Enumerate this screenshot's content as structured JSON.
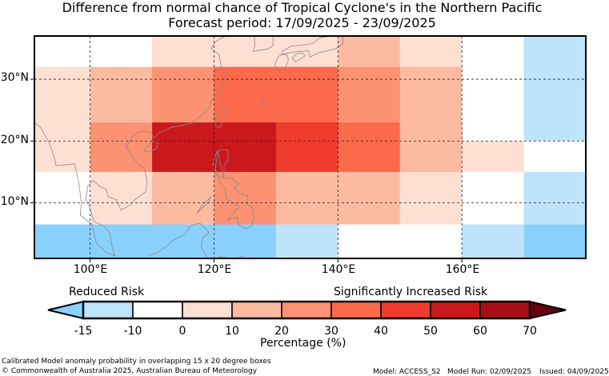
{
  "title_line1": "Difference from normal chance of Tropical Cyclone's in the Northern Pacific",
  "title_line2": "Forecast period: 17/09/2025 - 23/09/2025",
  "lat_labels": [
    "30°N",
    "20°N",
    "10°N"
  ],
  "lon_labels": [
    "100°E",
    "120°E",
    "140°E",
    "160°E"
  ],
  "legend": {
    "low_label": "Reduced Risk",
    "high_label": "Significantly Increased Risk",
    "unit_label": "Percentage (%)",
    "ticks": [
      "-15",
      "-10",
      "0",
      "10",
      "20",
      "30",
      "40",
      "50",
      "60",
      "70"
    ],
    "colors": {
      "lt-15": "#8ad0fc",
      "-15_-10": "#bee4fc",
      "-10_0": "#ffffff",
      "0_10": "#fee0d2",
      "10_20": "#fcbba1",
      "20_30": "#fc9272",
      "30_40": "#fb6a4a",
      "40_50": "#ef3b2c",
      "50_60": "#cb181d",
      "60_70": "#a50f15",
      "gt70": "#67000d"
    }
  },
  "footer": {
    "left1": "Calibrated Model anomaly probability in overlapping 15 x 20 degree boxes",
    "left2": "© Commonwealth of Australia 2025, Australian Bureau of Meteorology",
    "model": "Model: ACCESS_S2",
    "run": "Model Run: 02/09/2025",
    "issued": "Issued: 04/09/2025"
  },
  "map_data": {
    "lon_range": [
      91,
      180
    ],
    "lat_range": [
      1,
      37
    ],
    "grid_lons": [
      100,
      120,
      140,
      160
    ],
    "grid_lats": [
      10,
      20,
      30
    ],
    "cells": [
      {
        "lon0": 91,
        "lon1": 110,
        "lat0": 32,
        "lat1": 37,
        "c": "-10_0"
      },
      {
        "lon0": 110,
        "lon1": 130,
        "lat0": 32,
        "lat1": 37,
        "c": "0_10"
      },
      {
        "lon0": 130,
        "lon1": 140,
        "lat0": 32,
        "lat1": 37,
        "c": "0_10"
      },
      {
        "lon0": 140,
        "lon1": 150,
        "lat0": 32,
        "lat1": 37,
        "c": "10_20"
      },
      {
        "lon0": 150,
        "lon1": 160,
        "lat0": 32,
        "lat1": 37,
        "c": "0_10"
      },
      {
        "lon0": 160,
        "lon1": 170,
        "lat0": 32,
        "lat1": 37,
        "c": "-10_0"
      },
      {
        "lon0": 170,
        "lon1": 180,
        "lat0": 32,
        "lat1": 37,
        "c": "-15_-10"
      },
      {
        "lon0": 91,
        "lon1": 100,
        "lat0": 23,
        "lat1": 32,
        "c": "0_10"
      },
      {
        "lon0": 100,
        "lon1": 110,
        "lat0": 23,
        "lat1": 32,
        "c": "10_20"
      },
      {
        "lon0": 110,
        "lon1": 120,
        "lat0": 23,
        "lat1": 32,
        "c": "20_30"
      },
      {
        "lon0": 120,
        "lon1": 140,
        "lat0": 23,
        "lat1": 32,
        "c": "30_40"
      },
      {
        "lon0": 140,
        "lon1": 150,
        "lat0": 23,
        "lat1": 32,
        "c": "20_30"
      },
      {
        "lon0": 150,
        "lon1": 160,
        "lat0": 23,
        "lat1": 32,
        "c": "10_20"
      },
      {
        "lon0": 160,
        "lon1": 170,
        "lat0": 20,
        "lat1": 32,
        "c": "-10_0"
      },
      {
        "lon0": 170,
        "lon1": 180,
        "lat0": 20,
        "lat1": 32,
        "c": "-15_-10"
      },
      {
        "lon0": 91,
        "lon1": 100,
        "lat0": 15,
        "lat1": 23,
        "c": "0_10"
      },
      {
        "lon0": 100,
        "lon1": 110,
        "lat0": 15,
        "lat1": 23,
        "c": "20_30"
      },
      {
        "lon0": 110,
        "lon1": 130,
        "lat0": 15,
        "lat1": 23,
        "c": "50_60"
      },
      {
        "lon0": 130,
        "lon1": 140,
        "lat0": 15,
        "lat1": 23,
        "c": "40_50"
      },
      {
        "lon0": 140,
        "lon1": 150,
        "lat0": 15,
        "lat1": 23,
        "c": "30_40"
      },
      {
        "lon0": 150,
        "lon1": 160,
        "lat0": 15,
        "lat1": 23,
        "c": "10_20"
      },
      {
        "lon0": 160,
        "lon1": 170,
        "lat0": 15,
        "lat1": 20,
        "c": "0_10"
      },
      {
        "lon0": 170,
        "lon1": 180,
        "lat0": 15,
        "lat1": 20,
        "c": "-10_0"
      },
      {
        "lon0": 91,
        "lon1": 100,
        "lat0": 6.5,
        "lat1": 15,
        "c": "-10_0"
      },
      {
        "lon0": 100,
        "lon1": 110,
        "lat0": 6.5,
        "lat1": 15,
        "c": "0_10"
      },
      {
        "lon0": 110,
        "lon1": 120,
        "lat0": 6.5,
        "lat1": 15,
        "c": "10_20"
      },
      {
        "lon0": 120,
        "lon1": 130,
        "lat0": 6.5,
        "lat1": 15,
        "c": "20_30"
      },
      {
        "lon0": 130,
        "lon1": 150,
        "lat0": 6.5,
        "lat1": 15,
        "c": "10_20"
      },
      {
        "lon0": 150,
        "lon1": 160,
        "lat0": 6.5,
        "lat1": 15,
        "c": "0_10"
      },
      {
        "lon0": 160,
        "lon1": 170,
        "lat0": 6.5,
        "lat1": 15,
        "c": "-10_0"
      },
      {
        "lon0": 170,
        "lon1": 180,
        "lat0": 6.5,
        "lat1": 15,
        "c": "-15_-10"
      },
      {
        "lon0": 91,
        "lon1": 130,
        "lat0": 1,
        "lat1": 6.5,
        "c": "lt-15"
      },
      {
        "lon0": 130,
        "lon1": 140,
        "lat0": 1,
        "lat1": 6.5,
        "c": "-15_-10"
      },
      {
        "lon0": 140,
        "lon1": 160,
        "lat0": 1,
        "lat1": 6.5,
        "c": "-10_0"
      },
      {
        "lon0": 160,
        "lon1": 170,
        "lat0": 1,
        "lat1": 6.5,
        "c": "-15_-10"
      },
      {
        "lon0": 170,
        "lon1": 180,
        "lat0": 1,
        "lat1": 6.5,
        "c": "lt-15"
      }
    ],
    "coastlines": [
      [
        [
          91,
          23
        ],
        [
          92,
          22.2
        ],
        [
          93.5,
          19.5
        ],
        [
          94.3,
          17
        ],
        [
          94.5,
          16
        ],
        [
          97.5,
          16.3
        ],
        [
          98.2,
          13
        ],
        [
          98.6,
          10
        ],
        [
          98.4,
          8
        ],
        [
          100.3,
          6.5
        ],
        [
          101,
          3.5
        ],
        [
          102.5,
          2
        ],
        [
          104,
          1.4
        ],
        [
          103.5,
          3
        ],
        [
          103.2,
          5
        ],
        [
          102.3,
          6.2
        ],
        [
          100.6,
          7
        ],
        [
          100,
          9
        ],
        [
          99.3,
          10.5
        ],
        [
          99.6,
          12.7
        ],
        [
          100.5,
          13.6
        ],
        [
          101.5,
          12.7
        ],
        [
          102.6,
          12.2
        ],
        [
          102.9,
          11
        ],
        [
          104.2,
          10.5
        ],
        [
          105,
          8.8
        ],
        [
          106.5,
          9.7
        ],
        [
          107.3,
          10.6
        ],
        [
          109,
          11.8
        ],
        [
          109.2,
          13.4
        ],
        [
          108.8,
          15.4
        ],
        [
          107.1,
          17
        ],
        [
          105.8,
          19
        ],
        [
          106.7,
          20.6
        ],
        [
          107.9,
          21.5
        ],
        [
          109.7,
          21.5
        ],
        [
          110.3,
          20.5
        ],
        [
          111.1,
          21.3
        ],
        [
          113,
          22.2
        ],
        [
          114.3,
          22.4
        ],
        [
          116.4,
          22.9
        ],
        [
          117.6,
          23.9
        ],
        [
          119.2,
          25.3
        ],
        [
          119.6,
          26.6
        ],
        [
          120.6,
          27.8
        ],
        [
          121.6,
          29.8
        ],
        [
          121.9,
          30.7
        ],
        [
          121.3,
          31.5
        ],
        [
          121.1,
          32.5
        ],
        [
          120.8,
          34
        ],
        [
          119.5,
          35
        ],
        [
          120.2,
          36
        ],
        [
          121.4,
          36.8
        ],
        [
          122.3,
          37
        ]
      ],
      [
        [
          120.2,
          22.5
        ],
        [
          120.1,
          23.5
        ],
        [
          120.7,
          24.5
        ],
        [
          121.5,
          25.2
        ],
        [
          122,
          25
        ],
        [
          121.6,
          24
        ],
        [
          121,
          22.1
        ],
        [
          120.2,
          22.5
        ]
      ],
      [
        [
          108.7,
          18.5
        ],
        [
          110,
          20
        ],
        [
          111,
          19.6
        ],
        [
          110.6,
          18.7
        ],
        [
          109.5,
          18.2
        ],
        [
          108.7,
          18.5
        ]
      ],
      [
        [
          120.6,
          18.5
        ],
        [
          120.3,
          16.2
        ],
        [
          120,
          14.8
        ],
        [
          120.6,
          14.3
        ],
        [
          121.8,
          13.9
        ],
        [
          122.6,
          14.1
        ],
        [
          124,
          13
        ],
        [
          123.2,
          12.4
        ],
        [
          124.2,
          11.5
        ],
        [
          125.5,
          11.1
        ],
        [
          125.3,
          9.8
        ],
        [
          126.2,
          9.2
        ],
        [
          126.5,
          7.4
        ],
        [
          126,
          6.2
        ],
        [
          125.2,
          5.8
        ],
        [
          124,
          6.4
        ],
        [
          123.7,
          7.7
        ],
        [
          122.2,
          7.2
        ],
        [
          123.3,
          8.6
        ],
        [
          124,
          9.4
        ],
        [
          123,
          10
        ],
        [
          122,
          10.6
        ],
        [
          121.8,
          12.4
        ],
        [
          121,
          13.1
        ],
        [
          120.6,
          14.6
        ],
        [
          119.8,
          16.2
        ],
        [
          120.4,
          18.2
        ],
        [
          121.3,
          18.6
        ],
        [
          122.2,
          18.5
        ],
        [
          122.3,
          17
        ],
        [
          121.6,
          15.9
        ],
        [
          121.6,
          15
        ],
        [
          121.5,
          14
        ],
        [
          120.6,
          18.5
        ]
      ],
      [
        [
          117.2,
          8.3
        ],
        [
          118,
          9.5
        ],
        [
          119.5,
          11
        ],
        [
          119.2,
          10.2
        ],
        [
          117.2,
          8.3
        ]
      ],
      [
        [
          109.5,
          1.5
        ],
        [
          110.5,
          1.8
        ],
        [
          112.3,
          2.9
        ],
        [
          113.3,
          3.9
        ],
        [
          115.4,
          5
        ],
        [
          116.2,
          6.3
        ],
        [
          117.7,
          6.7
        ],
        [
          119.2,
          5.2
        ],
        [
          118.2,
          4.4
        ],
        [
          117.9,
          3
        ],
        [
          118.9,
          1.1
        ]
      ],
      [
        [
          124.8,
          1.4
        ],
        [
          123.2,
          0.9
        ],
        [
          121,
          1.3
        ],
        [
          120.3,
          1
        ],
        [
          122,
          1.2
        ]
      ],
      [
        [
          130.3,
          33.6
        ],
        [
          129.8,
          32.3
        ],
        [
          130.6,
          31.2
        ],
        [
          131.4,
          31.4
        ],
        [
          132,
          33.2
        ],
        [
          131.7,
          34
        ],
        [
          130.9,
          34
        ],
        [
          130.3,
          33.6
        ]
      ],
      [
        [
          132.6,
          33.4
        ],
        [
          133.2,
          32.8
        ],
        [
          134.7,
          33.8
        ],
        [
          134.2,
          34.3
        ],
        [
          133.1,
          34
        ],
        [
          132.6,
          33.4
        ]
      ],
      [
        [
          130.9,
          34
        ],
        [
          132.2,
          34.3
        ],
        [
          133.7,
          34.5
        ],
        [
          135.2,
          34.6
        ],
        [
          135.5,
          33.6
        ],
        [
          136.9,
          34.3
        ],
        [
          138.7,
          34.7
        ],
        [
          139.8,
          35
        ],
        [
          140.8,
          35.7
        ],
        [
          140.8,
          37
        ],
        [
          139.2,
          37
        ],
        [
          137,
          36.7
        ],
        [
          136,
          35.8
        ],
        [
          134,
          35.5
        ],
        [
          132.5,
          35.4
        ],
        [
          131,
          34.5
        ],
        [
          130.9,
          34
        ]
      ],
      [
        [
          126.3,
          34.5
        ],
        [
          126.6,
          35.5
        ],
        [
          126.5,
          37
        ],
        [
          129.5,
          37
        ],
        [
          129.5,
          35.4
        ],
        [
          128.6,
          34.9
        ],
        [
          127.3,
          34.7
        ],
        [
          126.3,
          34.5
        ]
      ],
      [
        [
          127.6,
          26.2
        ],
        [
          128,
          26.7
        ],
        [
          128.3,
          26.6
        ],
        [
          127.8,
          26.1
        ],
        [
          127.6,
          26.2
        ]
      ]
    ]
  }
}
